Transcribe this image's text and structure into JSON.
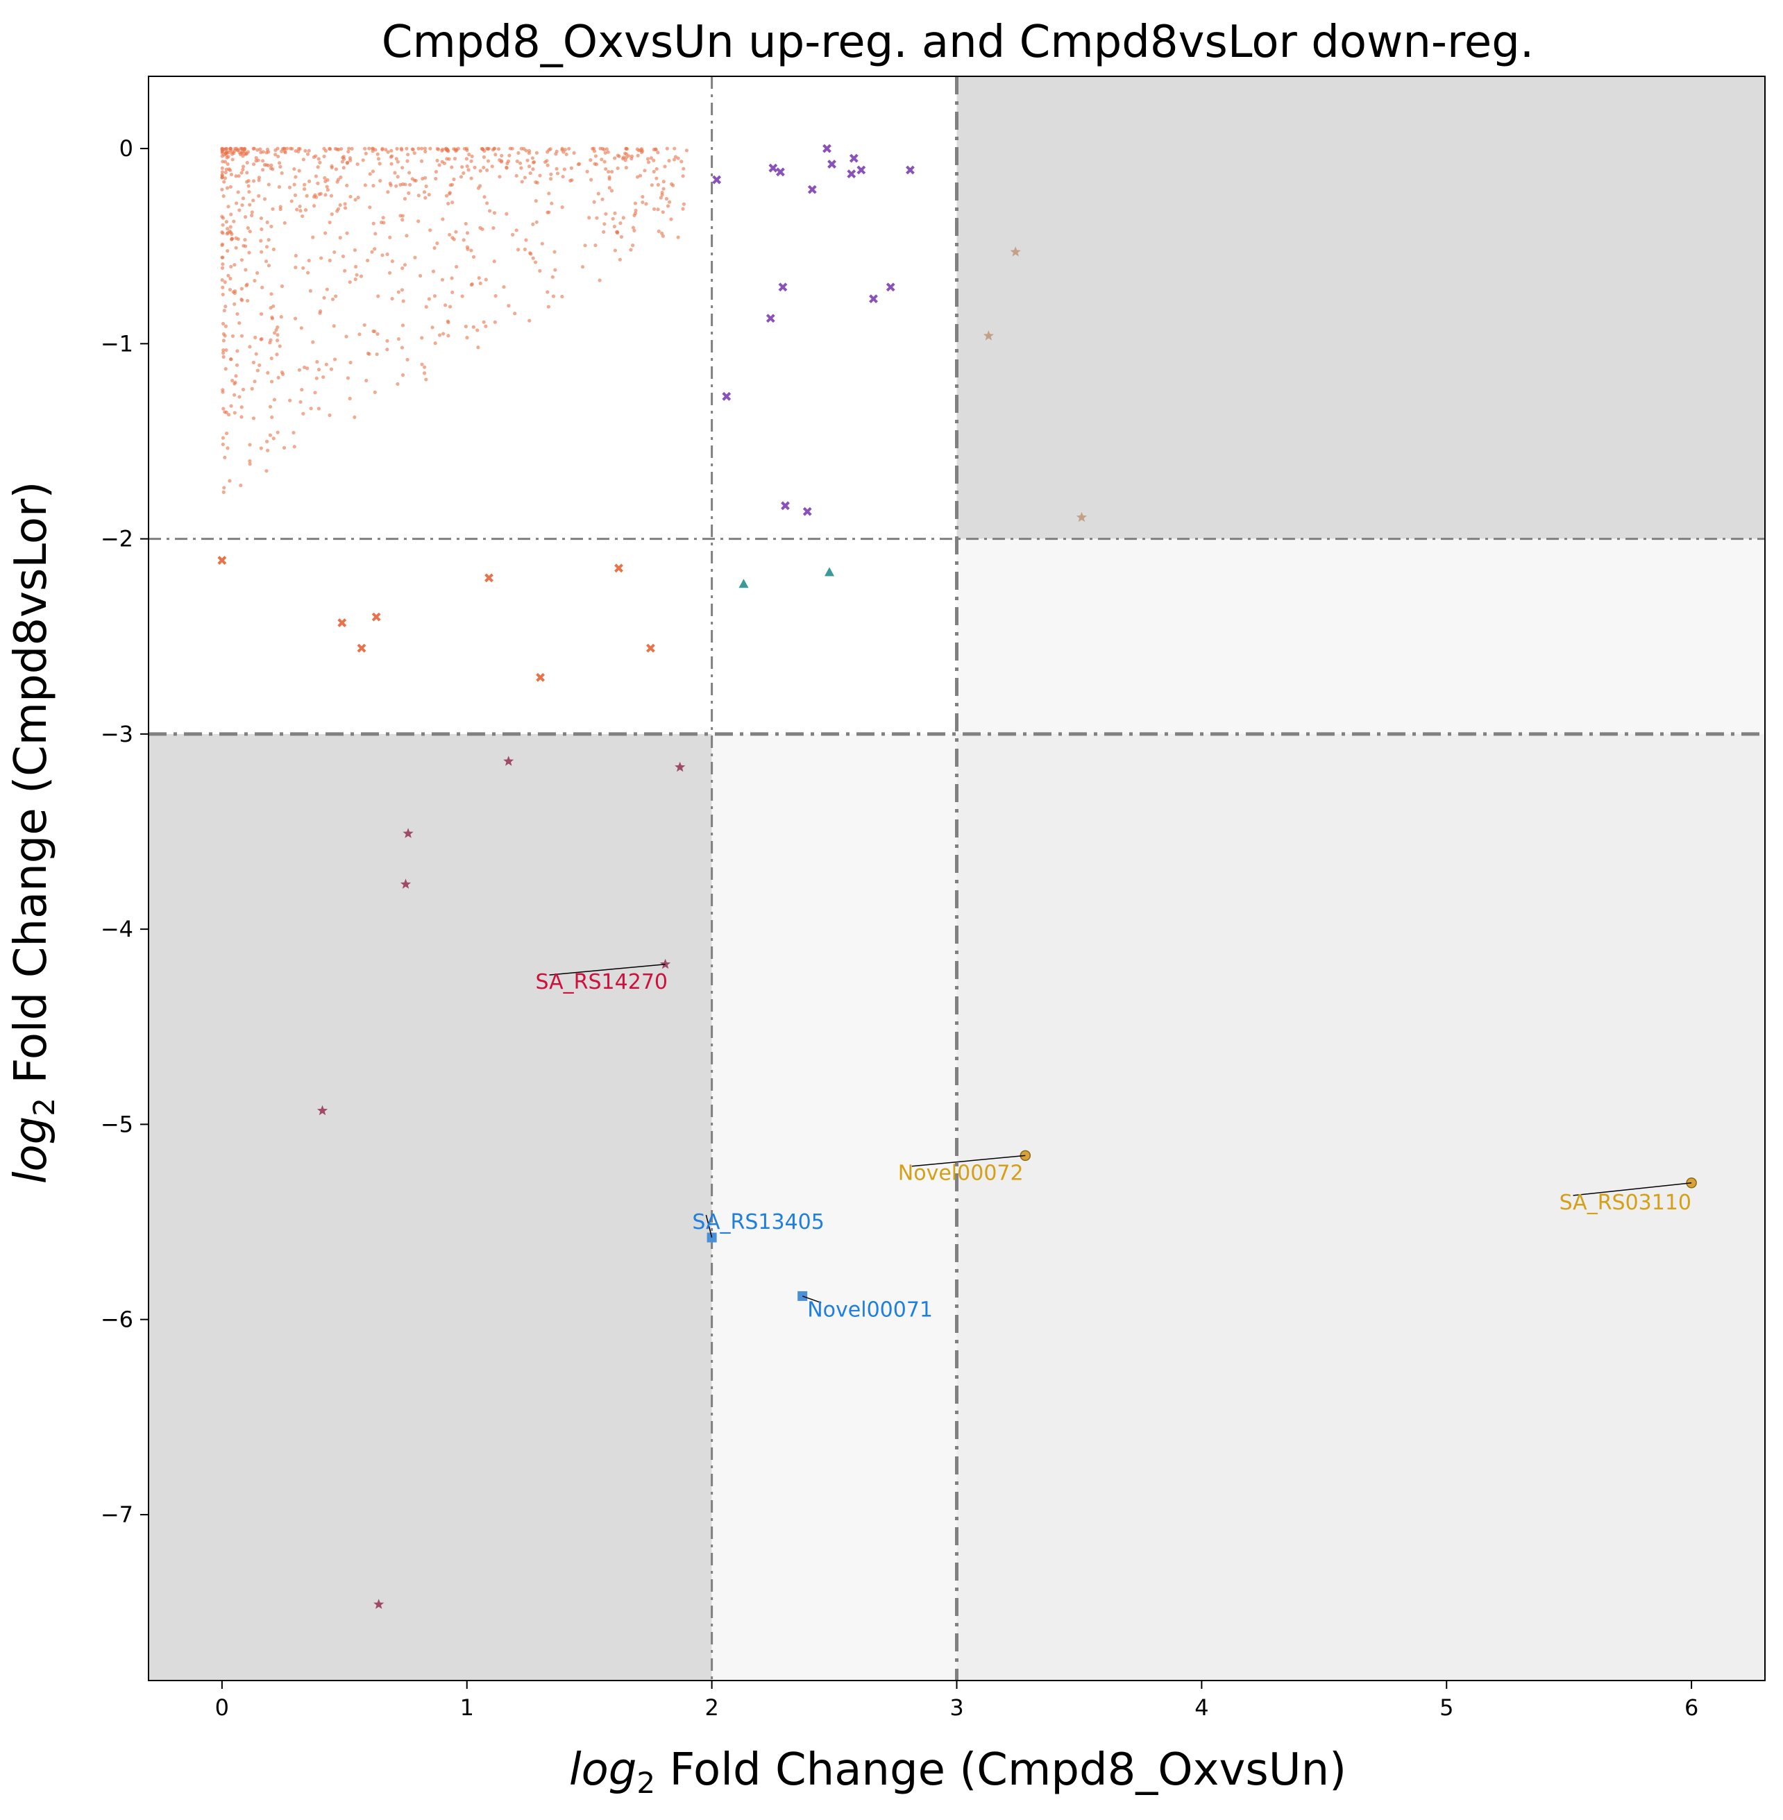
{
  "chart_data": {
    "type": "scatter",
    "title": "Cmpd8_OxvsUn up-reg. and Cmpd8vsLor down-reg.",
    "xlabel": {
      "math": "log",
      "sub": "2",
      "rest": " Fold Change (Cmpd8_OxvsUn)"
    },
    "ylabel": {
      "math": "log",
      "sub": "2",
      "rest": " Fold Change (Cmpd8vsLor)"
    },
    "xlim": [
      -0.3,
      6.3
    ],
    "ylim": [
      -7.85,
      0.37
    ],
    "xticks": [
      0,
      1,
      2,
      3,
      4,
      5,
      6
    ],
    "yticks": [
      0,
      -1,
      -2,
      -3,
      -4,
      -5,
      -6,
      -7
    ],
    "xtick_labels": [
      "0",
      "1",
      "2",
      "3",
      "4",
      "5",
      "6"
    ],
    "ytick_labels": [
      "0",
      "−1",
      "−2",
      "−3",
      "−4",
      "−5",
      "−6",
      "−7"
    ],
    "grid": false,
    "thresholds": {
      "x": [
        {
          "value": 2,
          "style": "thin"
        },
        {
          "value": 3,
          "style": "thick"
        }
      ],
      "y": [
        {
          "value": -2,
          "style": "thin"
        },
        {
          "value": -3,
          "style": "thick"
        }
      ]
    },
    "regions": [
      {
        "x": [
          3,
          6.3
        ],
        "y": [
          -2,
          0.37
        ],
        "color": "#dcdcdc"
      },
      {
        "x": [
          -0.3,
          2
        ],
        "y": [
          -7.85,
          -3
        ],
        "color": "#dcdcdc"
      },
      {
        "x": [
          3,
          6.3
        ],
        "y": [
          -3,
          -2
        ],
        "color": "#f7f7f7"
      },
      {
        "x": [
          2,
          3
        ],
        "y": [
          -7.85,
          -3
        ],
        "color": "#f7f7f7"
      },
      {
        "x": [
          3,
          6.3
        ],
        "y": [
          -7.85,
          -3
        ],
        "color": "#efefef"
      }
    ],
    "series": [
      {
        "marker": "x",
        "color": "#8a52b8",
        "points": [
          [
            2.02,
            -0.16
          ],
          [
            2.25,
            -0.1
          ],
          [
            2.28,
            -0.12
          ],
          [
            2.41,
            -0.21
          ],
          [
            2.47,
            0.0
          ],
          [
            2.49,
            -0.08
          ],
          [
            2.57,
            -0.13
          ],
          [
            2.58,
            -0.05
          ],
          [
            2.61,
            -0.11
          ],
          [
            2.81,
            -0.11
          ],
          [
            2.24,
            -0.87
          ],
          [
            2.29,
            -0.71
          ],
          [
            2.66,
            -0.77
          ],
          [
            2.73,
            -0.71
          ],
          [
            2.06,
            -1.27
          ],
          [
            2.3,
            -1.83
          ],
          [
            2.39,
            -1.86
          ]
        ]
      },
      {
        "marker": "x",
        "color": "#e8734a",
        "points": [
          [
            0.0,
            -2.11
          ],
          [
            0.49,
            -2.43
          ],
          [
            0.57,
            -2.56
          ],
          [
            0.63,
            -2.4
          ],
          [
            1.09,
            -2.2
          ],
          [
            1.3,
            -2.71
          ],
          [
            1.62,
            -2.15
          ],
          [
            1.75,
            -2.56
          ]
        ]
      },
      {
        "marker": "triangle",
        "color": "#3a9a9a",
        "points": [
          [
            2.13,
            -2.23
          ],
          [
            2.48,
            -2.17
          ]
        ]
      },
      {
        "marker": "star",
        "color": "#c4a086",
        "points": [
          [
            3.24,
            -0.53
          ],
          [
            3.13,
            -0.96
          ],
          [
            3.51,
            -1.89
          ]
        ]
      },
      {
        "marker": "star",
        "color": "#9e4a68",
        "points": [
          [
            1.17,
            -3.14
          ],
          [
            1.87,
            -3.17
          ],
          [
            0.76,
            -3.51
          ],
          [
            0.75,
            -3.77
          ],
          [
            1.81,
            -4.18
          ],
          [
            0.41,
            -4.93
          ],
          [
            0.64,
            -7.46
          ]
        ]
      },
      {
        "marker": "square",
        "color": "#4a90d9",
        "points": [
          [
            2.0,
            -5.58
          ],
          [
            2.37,
            -5.88
          ]
        ]
      },
      {
        "marker": "circle",
        "color": "#d8a23a",
        "points": [
          [
            3.28,
            -5.16
          ],
          [
            6.0,
            -5.3
          ]
        ]
      }
    ],
    "background_series": {
      "marker": "dot",
      "color": "#e8734a",
      "note_point_count": 900
    },
    "annotations": [
      {
        "text": "SA_RS14270",
        "color": "#d0103a",
        "x": 1.81,
        "y": -4.18,
        "label_x": 1.28,
        "label_y": -4.27
      },
      {
        "text": "Novel00072",
        "color": "#d4a017",
        "x": 3.28,
        "y": -5.16,
        "label_x": 2.76,
        "label_y": -5.25
      },
      {
        "text": "SA_RS03110",
        "color": "#d4a017",
        "x": 6.0,
        "y": -5.3,
        "label_x": 5.46,
        "label_y": -5.4
      },
      {
        "text": "SA_RS13405",
        "color": "#1e7fe0",
        "x": 2.0,
        "y": -5.58,
        "label_x": 1.92,
        "label_y": -5.5
      },
      {
        "text": "Novel00071",
        "color": "#1e7fe0",
        "x": 2.37,
        "y": -5.88,
        "label_x": 2.39,
        "label_y": -5.95
      }
    ]
  }
}
